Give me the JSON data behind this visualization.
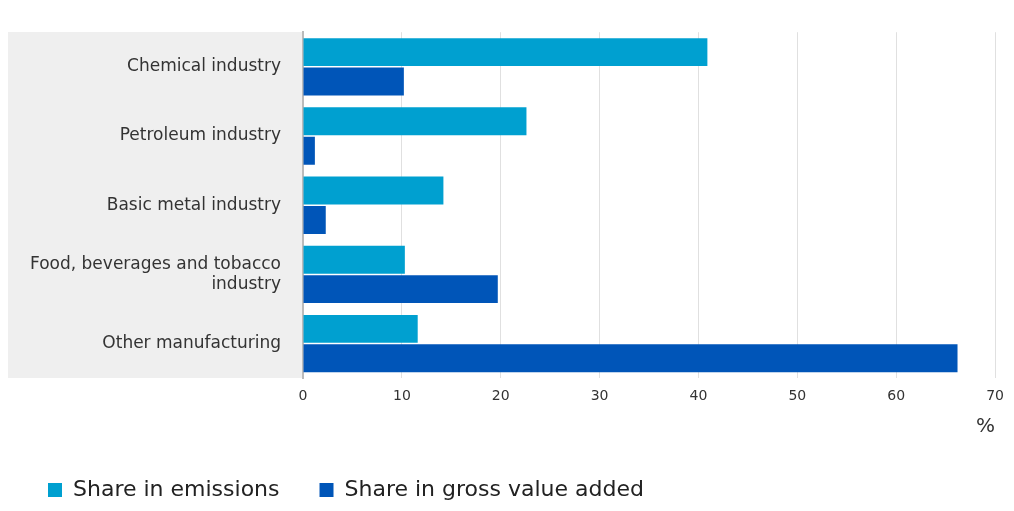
{
  "chart_data": {
    "type": "bar",
    "orientation": "horizontal",
    "categories": [
      "Chemical industry",
      "Petroleum industry",
      "Basic metal industry",
      "Food, beverages and tobacco industry",
      "Other manufacturing"
    ],
    "series": [
      {
        "name": "Share in emissions",
        "color": "#00a0d0",
        "values": [
          40.9,
          22.6,
          14.2,
          10.3,
          11.6
        ]
      },
      {
        "name": "Share in gross value added",
        "color": "#0055b8",
        "values": [
          10.2,
          1.2,
          2.3,
          19.7,
          66.2
        ]
      }
    ],
    "xlabel": "%",
    "xlim": [
      0,
      70
    ],
    "xticks": [
      0,
      10,
      20,
      30,
      40,
      50,
      60,
      70
    ],
    "grid": "x",
    "legend": "bottom left"
  }
}
